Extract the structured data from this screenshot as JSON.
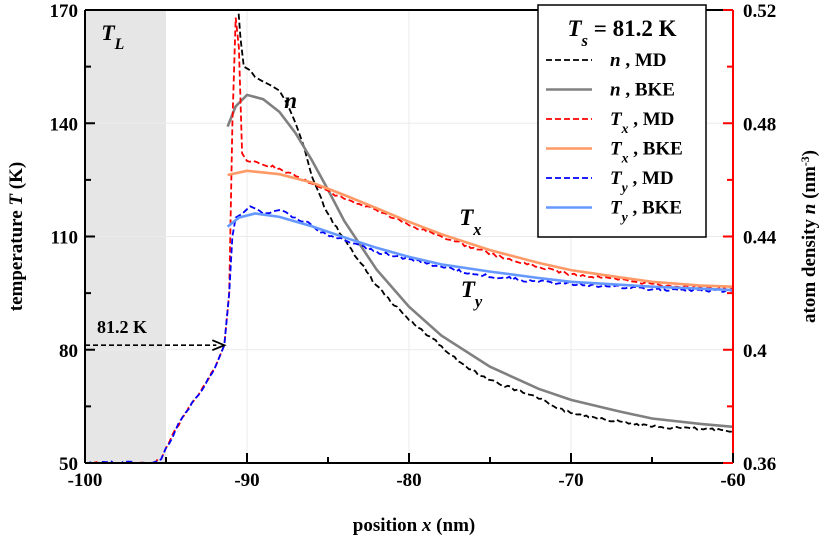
{
  "chart_data": {
    "type": "line",
    "xlabel": {
      "text": "position ",
      "var": "x",
      "unit": " (nm)"
    },
    "ylabel": {
      "text": "temperature ",
      "var": "T",
      "unit": " (K)"
    },
    "y2label": {
      "text": "atom density ",
      "var": "n",
      "unit": " (nm",
      "sup": "-3",
      "close": ")"
    },
    "xlim": [
      -100,
      -60
    ],
    "ylim": [
      50,
      170
    ],
    "y2lim": [
      0.36,
      0.52
    ],
    "xticks": [
      "-100",
      "-90",
      "-80",
      "-70",
      "-60"
    ],
    "yticks": [
      "50",
      "80",
      "110",
      "140",
      "170"
    ],
    "y2ticks": [
      "0.36",
      "0.4",
      "0.44",
      "0.48",
      "0.52"
    ],
    "grid": true,
    "legend": {
      "placement": "top-right",
      "title": {
        "symbol": "T",
        "sub": "s",
        "text": " = 81.2 K"
      },
      "entries": [
        {
          "symbol": "n",
          "sub": "",
          "text": " , MD"
        },
        {
          "symbol": "n",
          "sub": "",
          "text": " , BKE"
        },
        {
          "symbol": "T",
          "sub": "x",
          "text": " , MD"
        },
        {
          "symbol": "T",
          "sub": "x",
          "text": " , BKE"
        },
        {
          "symbol": "T",
          "sub": "y",
          "text": " , MD"
        },
        {
          "symbol": "T",
          "sub": "y",
          "text": " , BKE"
        }
      ]
    },
    "series": [
      {
        "name": "n , MD",
        "axis": "right",
        "color": "#000000",
        "dash": true,
        "x": [
          -90.6,
          -90.4,
          -90.2,
          -89.8,
          -89.5,
          -89,
          -88.5,
          -88,
          -87.5,
          -87,
          -86.5,
          -86,
          -85,
          -84.3,
          -83,
          -82,
          -80,
          -78,
          -77,
          -75,
          -72,
          -70,
          -67,
          -65,
          -62,
          -60
        ],
        "y": [
          0.525,
          0.51,
          0.5,
          0.4987,
          0.4963,
          0.4947,
          0.4933,
          0.4915,
          0.4867,
          0.48,
          0.472,
          0.4613,
          0.448,
          0.4413,
          0.4307,
          0.4227,
          0.4105,
          0.4013,
          0.396,
          0.3893,
          0.3827,
          0.3776,
          0.3747,
          0.3728,
          0.372,
          0.3711
        ]
      },
      {
        "name": "n , BKE",
        "axis": "right",
        "color": "#808080",
        "dash": false,
        "x": [
          -91.2,
          -90.7,
          -90,
          -89,
          -88,
          -87,
          -86,
          -85,
          -84,
          -82,
          -80,
          -78,
          -75,
          -72,
          -70,
          -67,
          -65,
          -62,
          -60
        ],
        "y": [
          0.4788,
          0.486,
          0.49,
          0.4885,
          0.484,
          0.4765,
          0.467,
          0.4565,
          0.4455,
          0.4283,
          0.4152,
          0.405,
          0.394,
          0.3862,
          0.3823,
          0.3782,
          0.3757,
          0.3738,
          0.3728
        ]
      },
      {
        "name": "Tx , MD",
        "axis": "left",
        "color": "#ff0000",
        "dash": true,
        "x": [
          -100,
          -96,
          -95.3,
          -95,
          -94,
          -93,
          -92,
          -91.4,
          -91.1,
          -90.9,
          -90.7,
          -90.5,
          -90.3,
          -90,
          -89,
          -88,
          -87,
          -86,
          -85.5,
          -84,
          -82,
          -80,
          -78,
          -76,
          -74,
          -72,
          -70,
          -68,
          -66,
          -64,
          -62,
          -60
        ],
        "y": [
          50,
          50,
          51,
          54,
          62,
          68,
          75,
          81.2,
          95,
          140,
          168,
          160,
          132,
          130,
          129,
          128,
          126,
          124,
          123,
          120,
          117,
          113,
          110,
          107,
          104,
          102,
          100,
          99,
          98,
          97,
          96.5,
          96
        ]
      },
      {
        "name": "Tx , BKE",
        "axis": "left",
        "color": "#ff9966",
        "dash": false,
        "x": [
          -91.2,
          -90,
          -88,
          -86,
          -84,
          -82,
          -80,
          -78,
          -75,
          -72,
          -70,
          -67,
          -65,
          -62,
          -60
        ],
        "y": [
          126.3,
          127.4,
          126.5,
          124.3,
          121,
          117.5,
          113.9,
          110.6,
          106.4,
          103,
          101.1,
          99.2,
          98,
          97,
          96.7
        ]
      },
      {
        "name": "Ty , MD",
        "axis": "left",
        "color": "#0000ff",
        "dash": true,
        "x": [
          -100,
          -96,
          -95.3,
          -95,
          -94,
          -93,
          -92,
          -91.4,
          -91.1,
          -90.9,
          -90.7,
          -90.3,
          -89.8,
          -89,
          -88,
          -87,
          -86,
          -85.5,
          -84,
          -82,
          -80,
          -78,
          -76,
          -74,
          -72,
          -70,
          -65,
          -60
        ],
        "y": [
          50,
          50,
          51,
          54,
          62,
          68,
          75,
          81.2,
          95,
          110,
          115,
          116,
          118,
          116,
          117,
          115,
          113,
          111,
          109,
          106,
          104,
          102,
          100,
          99,
          98,
          97.5,
          96,
          95.5
        ]
      },
      {
        "name": "Ty , BKE",
        "axis": "left",
        "color": "#6699ff",
        "dash": false,
        "x": [
          -91.2,
          -90.5,
          -89.5,
          -88,
          -86,
          -84,
          -82,
          -80,
          -78,
          -75,
          -72,
          -70,
          -65,
          -60
        ],
        "y": [
          112.6,
          115,
          116.1,
          115.2,
          112.7,
          109.8,
          107,
          104.6,
          102.6,
          100.7,
          99,
          98,
          96.7,
          95.8
        ]
      }
    ],
    "annotations": {
      "shaded_region": {
        "label_symbol": "T",
        "label_sub": "L",
        "x_range": [
          -100,
          -95
        ],
        "color": "#e6e6e6"
      },
      "arrow": {
        "label": "81.2 K",
        "value": 81.2,
        "x_from": -100,
        "x_to": -91.4
      },
      "curve_labels": [
        {
          "symbol": "n",
          "sub": "",
          "x": -87.7,
          "y": 144
        },
        {
          "symbol": "T",
          "sub": "x",
          "x": -76.9,
          "y": 113
        },
        {
          "symbol": "T",
          "sub": "y",
          "x": -76.8,
          "y": 94
        }
      ]
    },
    "right_axis_color": "#ff0000"
  }
}
